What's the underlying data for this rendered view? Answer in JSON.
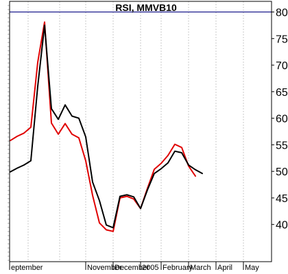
{
  "chart_data": {
    "type": "line",
    "title": "RSI, MMVB10",
    "xlabel": "",
    "ylabel": "",
    "ylim": [
      33,
      82
    ],
    "grid": true,
    "reference_line": {
      "value": 80,
      "color": "#1a1a8c"
    },
    "yticks": [
      40,
      45,
      50,
      55,
      60,
      65,
      70,
      75,
      80
    ],
    "xtick_labels": [
      "eptember",
      "November",
      "December",
      "2005",
      "February",
      "March",
      "April",
      "May"
    ],
    "xtick_positions": [
      0,
      11,
      15,
      19,
      22,
      26,
      30,
      34
    ],
    "series": [
      {
        "color": "#e00000",
        "values": [
          55.8,
          56.6,
          57.2,
          58.3,
          70.5,
          78.1,
          59.1,
          57.0,
          59.0,
          57.0,
          56.3,
          52.0,
          45.5,
          40.3,
          39.0,
          38.7,
          45.0,
          45.3,
          44.8,
          43.0,
          46.8,
          50.4,
          51.5,
          53.0,
          55.1,
          54.5,
          51.0,
          49.1
        ]
      },
      {
        "color": "#000000",
        "values": [
          49.9,
          50.6,
          51.2,
          52.0,
          66.0,
          77.5,
          61.8,
          59.8,
          62.5,
          60.4,
          60.0,
          56.5,
          48.0,
          44.5,
          39.9,
          39.4,
          45.3,
          45.6,
          45.2,
          43.0,
          46.5,
          49.6,
          50.5,
          51.6,
          53.8,
          53.5,
          51.2,
          50.3,
          49.6
        ]
      }
    ]
  }
}
